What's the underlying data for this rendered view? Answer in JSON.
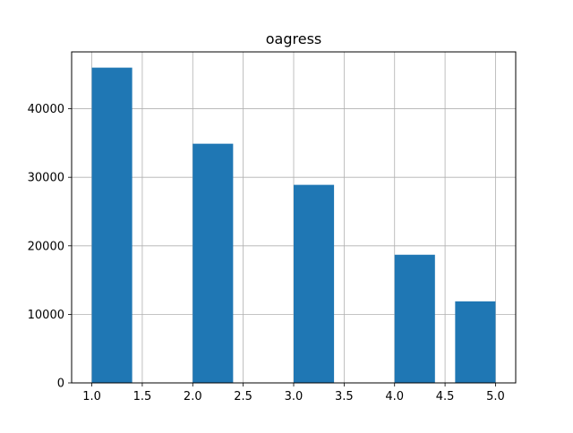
{
  "chart_data": {
    "type": "bar",
    "title": "oagress",
    "xlabel": "",
    "ylabel": "",
    "xlim": [
      0.8,
      5.2
    ],
    "ylim": [
      0,
      48300
    ],
    "x_ticks": [
      1.0,
      1.5,
      2.0,
      2.5,
      3.0,
      3.5,
      4.0,
      4.5,
      5.0
    ],
    "x_tick_labels": [
      "1.0",
      "1.5",
      "2.0",
      "2.5",
      "3.0",
      "3.5",
      "4.0",
      "4.5",
      "5.0"
    ],
    "y_ticks": [
      0,
      10000,
      20000,
      30000,
      40000
    ],
    "y_tick_labels": [
      "0",
      "10000",
      "20000",
      "30000",
      "40000"
    ],
    "grid": true,
    "bar_color": "#1f77b4",
    "bars": [
      {
        "x0": 1.0,
        "x1": 1.4,
        "value": 46000
      },
      {
        "x0": 2.0,
        "x1": 2.4,
        "value": 34900
      },
      {
        "x0": 3.0,
        "x1": 3.4,
        "value": 28900
      },
      {
        "x0": 4.0,
        "x1": 4.4,
        "value": 18700
      },
      {
        "x0": 4.6,
        "x1": 5.0,
        "value": 11900
      }
    ]
  }
}
